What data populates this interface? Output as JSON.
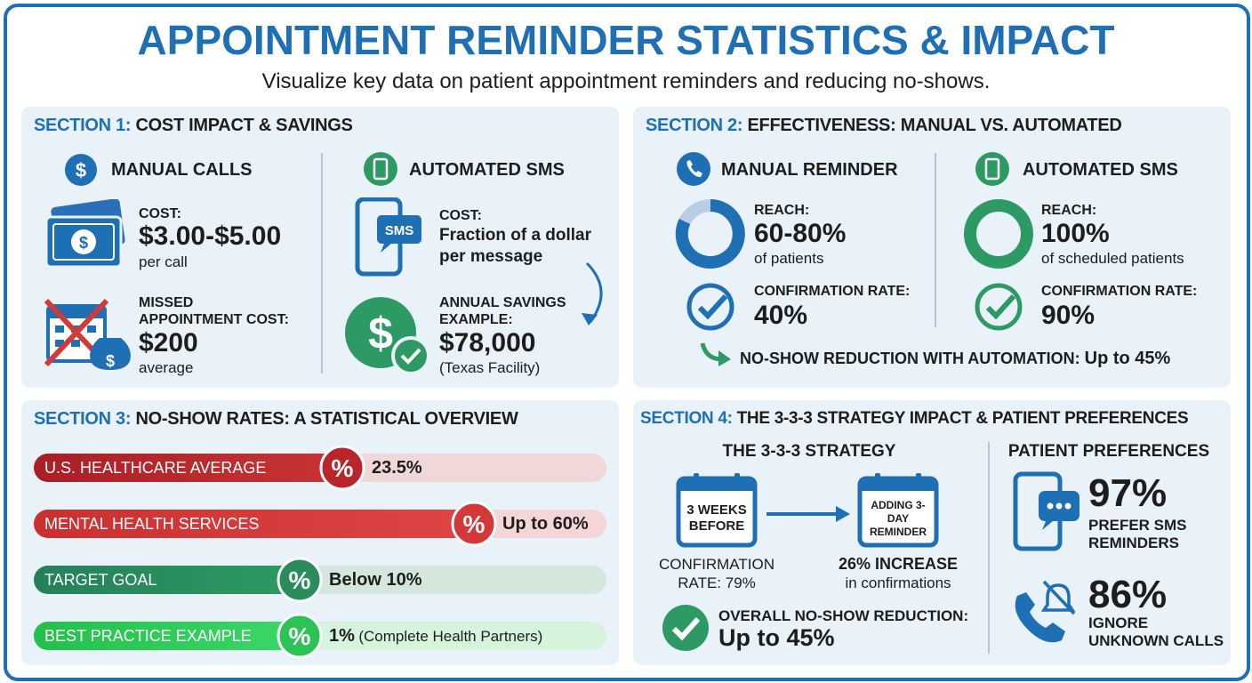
{
  "header": {
    "title": "APPOINTMENT REMINDER STATISTICS & IMPACT",
    "subtitle": "Visualize key data on patient appointment reminders and reducing no-shows."
  },
  "section1": {
    "label": "SECTION 1:",
    "title": "COST IMPACT & SAVINGS",
    "currency_symbol": "$",
    "manual": {
      "heading": "MANUAL CALLS",
      "cost_label": "COST:",
      "cost_value": "$3.00-$5.00",
      "cost_unit": "per call",
      "missed_label": "MISSED APPOINTMENT COST:",
      "missed_value": "$200",
      "missed_unit": "average"
    },
    "automated": {
      "heading": "AUTOMATED SMS",
      "icon_text": "SMS",
      "cost_label": "COST:",
      "cost_value": "Fraction of a dollar per message",
      "savings_label": "ANNUAL SAVINGS EXAMPLE:",
      "savings_value": "$78,000",
      "savings_note": "(Texas Facility)"
    }
  },
  "section2": {
    "label": "SECTION 2:",
    "title": "EFFECTIVENESS: MANUAL VS. AUTOMATED",
    "manual": {
      "heading": "MANUAL REMINDER",
      "reach_label": "REACH:",
      "reach_value": "60-80%",
      "reach_note": "of patients",
      "confirm_label": "CONFIRMATION RATE:",
      "confirm_value": "40%"
    },
    "automated": {
      "heading": "AUTOMATED SMS",
      "reach_label": "REACH:",
      "reach_value": "100%",
      "reach_note": "of scheduled patients",
      "confirm_label": "CONFIRMATION RATE:",
      "confirm_value": "90%"
    },
    "footer_label": "NO-SHOW REDUCTION WITH AUTOMATION:",
    "footer_value": "Up to 45%"
  },
  "section3": {
    "label": "SECTION 3:",
    "title": "NO-SHOW RATES: A STATISTICAL OVERVIEW",
    "icon_text": "%",
    "rows": [
      {
        "label": "U.S. HEALTHCARE AVERAGE",
        "value": "23.5%"
      },
      {
        "label": "MENTAL HEALTH SERVICES",
        "value": "Up to 60%"
      },
      {
        "label": "TARGET GOAL",
        "value": "Below 10%"
      },
      {
        "label": "BEST PRACTICE EXAMPLE",
        "value": "1%",
        "note": "(Complete Health Partners)"
      }
    ]
  },
  "section4": {
    "label": "SECTION 4:",
    "title": "THE 3-3-3 STRATEGY IMPACT & PATIENT PREFERENCES",
    "strategy": {
      "heading": "THE 3-3-3 STRATEGY",
      "step1": "3 WEEKS BEFORE",
      "step1_caption": "CONFIRMATION RATE: 79%",
      "step2": "ADDING 3-DAY REMINDER",
      "step2_value": "26% INCREASE",
      "step2_note": "in confirmations",
      "overall_label": "OVERALL NO-SHOW REDUCTION:",
      "overall_value": "Up to 45%"
    },
    "preferences": {
      "heading": "PATIENT PREFERENCES",
      "items": [
        {
          "value": "97%",
          "label": "PREFER SMS REMINDERS"
        },
        {
          "value": "86%",
          "label": "IGNORE UNKNOWN CALLS"
        }
      ]
    }
  }
}
